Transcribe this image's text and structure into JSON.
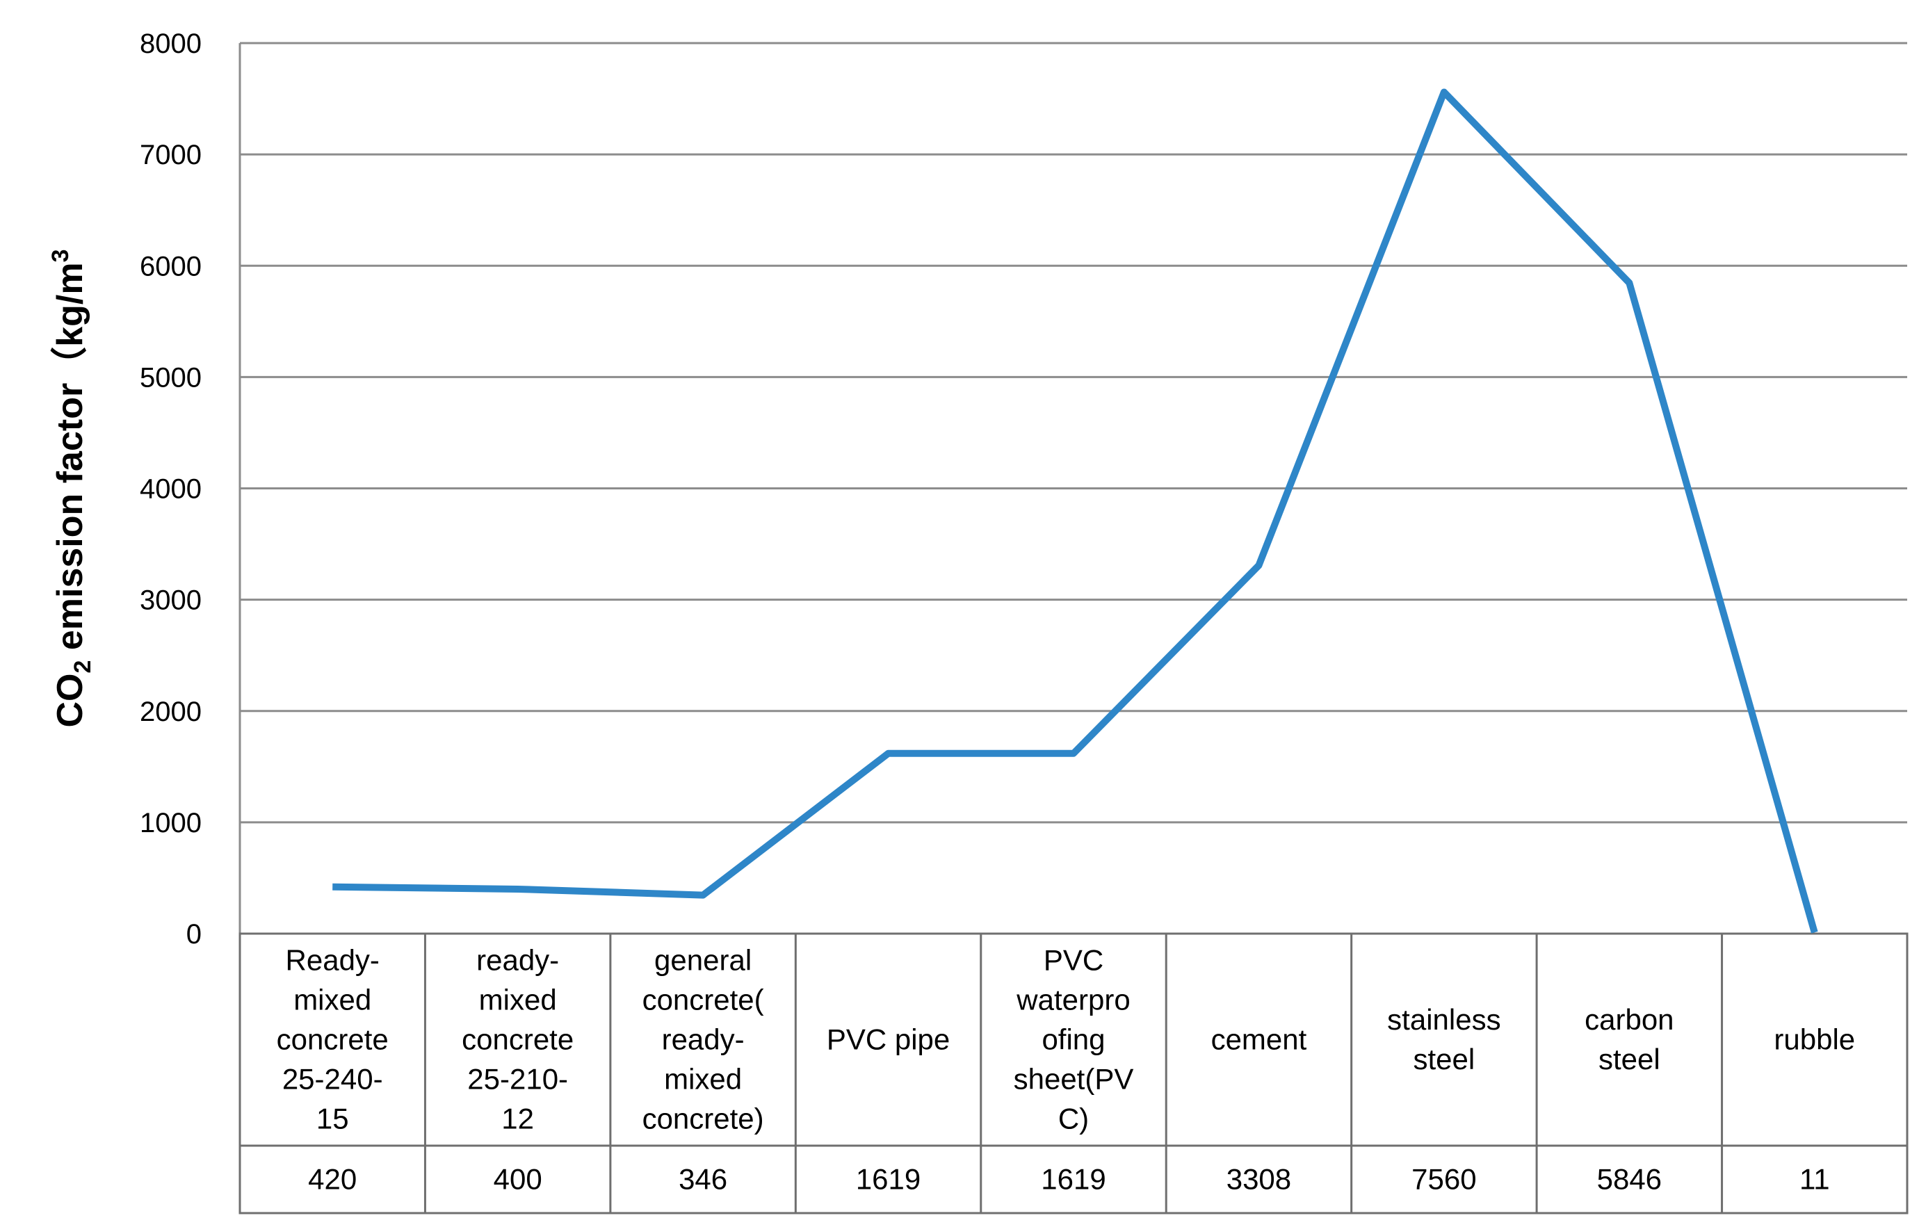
{
  "chart_data": {
    "type": "line",
    "ylabel_main": "CO",
    "ylabel_sub": "2",
    "ylabel_rest": " emission factor（kg/m",
    "ylabel_sup": "3",
    "ylim": [
      0,
      8000
    ],
    "yticks": [
      "0",
      "1000",
      "2000",
      "3000",
      "4000",
      "5000",
      "6000",
      "7000",
      "8000"
    ],
    "grid": true,
    "categories": [
      [
        "Ready-",
        "mixed",
        "concrete",
        "25-240-",
        "15"
      ],
      [
        "ready-",
        "mixed",
        "concrete",
        "25-210-",
        "12"
      ],
      [
        "general",
        "concrete(",
        "ready-",
        "mixed",
        "concrete)"
      ],
      [
        "PVC pipe"
      ],
      [
        "PVC",
        "waterpro",
        "ofing",
        "sheet(PV",
        "C)"
      ],
      [
        "cement"
      ],
      [
        "stainless",
        "steel"
      ],
      [
        "carbon",
        "steel"
      ],
      [
        "rubble"
      ]
    ],
    "values": [
      420,
      400,
      346,
      1619,
      1619,
      3308,
      7560,
      5846,
      11
    ],
    "value_labels": [
      "420",
      "400",
      "346",
      "1619",
      "1619",
      "3308",
      "7560",
      "5846",
      "11"
    ],
    "series": [
      {
        "color": "#2e86c8",
        "values": [
          420,
          400,
          346,
          1619,
          1619,
          3308,
          7560,
          5846,
          11
        ]
      }
    ]
  }
}
